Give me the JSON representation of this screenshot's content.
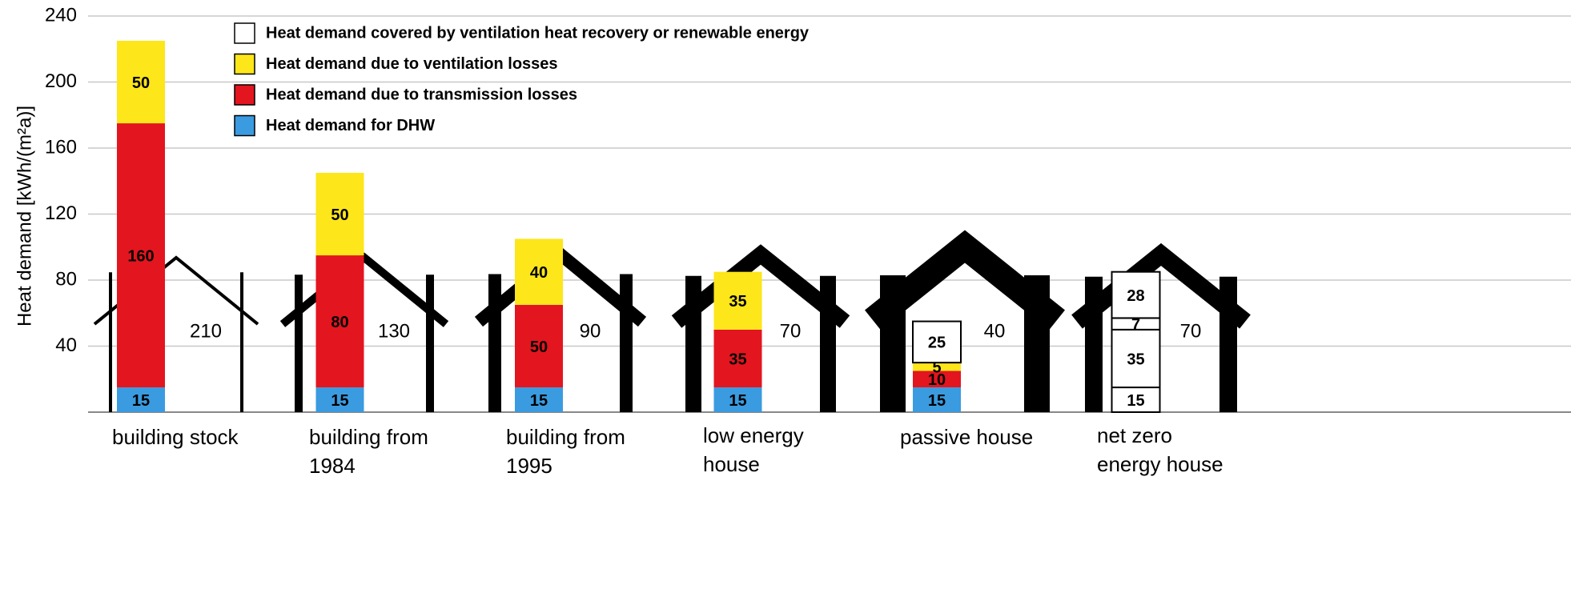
{
  "chart_data": {
    "type": "stacked-bar",
    "y_label": "Heat demand [kWh/(m²a)]",
    "categories": [
      "building stock",
      "building from 1984",
      "building from 1995",
      "low energy house",
      "passive house",
      "net zero energy house"
    ],
    "series": [
      {
        "name": "Heat demand for DHW",
        "color": "#3a9be0",
        "colors": [
          "#3a9be0",
          "#3a9be0",
          "#3a9be0",
          "#3a9be0",
          "#3a9be0",
          "#ffffff"
        ],
        "values": [
          15,
          15,
          15,
          15,
          15,
          15
        ]
      },
      {
        "name": "Heat demand due to transmission losses",
        "color": "#e3151f",
        "colors": [
          "#e3151f",
          "#e3151f",
          "#e3151f",
          "#e3151f",
          "#e3151f",
          "#ffffff"
        ],
        "values": [
          160,
          80,
          50,
          35,
          10,
          35
        ]
      },
      {
        "name": "Heat demand due to ventilation losses",
        "color": "#fde61a",
        "colors": [
          "#fde61a",
          "#fde61a",
          "#fde61a",
          "#fde61a",
          "#fde61a",
          "#ffffff"
        ],
        "values": [
          50,
          50,
          40,
          35,
          5,
          7
        ]
      },
      {
        "name": "Heat demand covered by ventilation heat recovery or renewable energy",
        "color": "#ffffff",
        "colors": [
          "#ffffff",
          "#ffffff",
          "#ffffff",
          "#ffffff",
          "#ffffff",
          "#ffffff"
        ],
        "values": [
          null,
          null,
          null,
          null,
          25,
          28
        ]
      }
    ],
    "house_values": [
      210,
      130,
      90,
      70,
      40,
      70
    ],
    "ylim": [
      0,
      240
    ],
    "yticks": [
      40,
      80,
      120,
      160,
      200,
      240
    ],
    "grid": true
  }
}
